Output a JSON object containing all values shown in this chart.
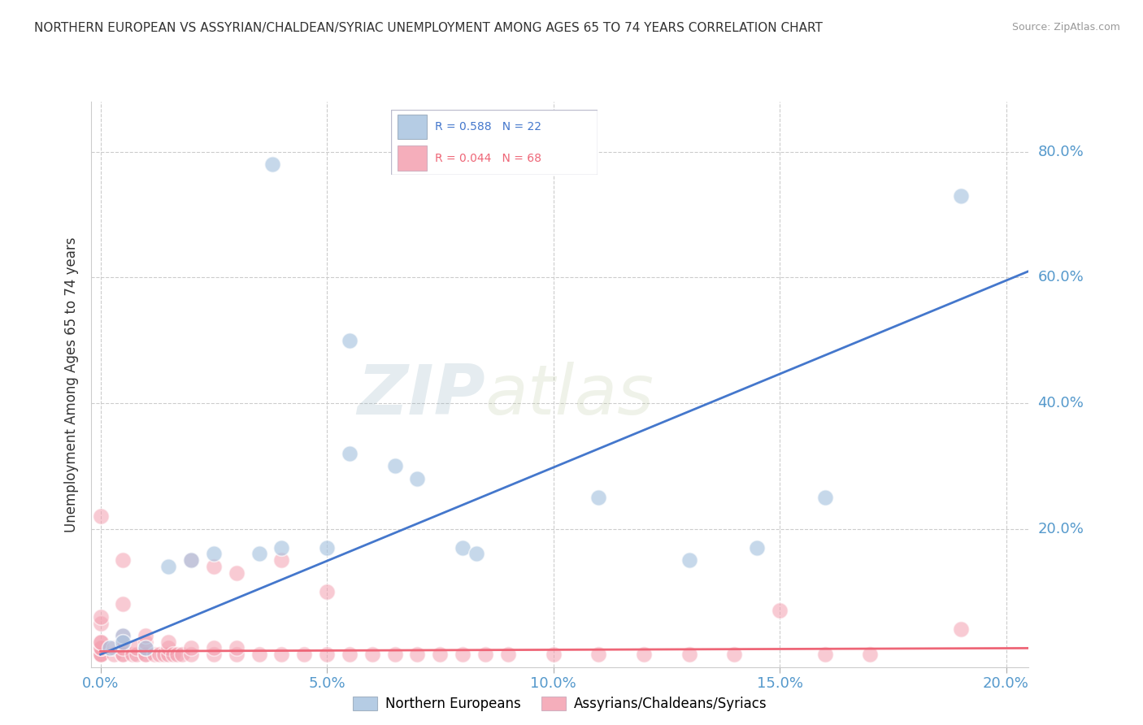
{
  "title": "NORTHERN EUROPEAN VS ASSYRIAN/CHALDEAN/SYRIAC UNEMPLOYMENT AMONG AGES 65 TO 74 YEARS CORRELATION CHART",
  "source_text": "Source: ZipAtlas.com",
  "xlabel_ticks": [
    "0.0%",
    "5.0%",
    "10.0%",
    "15.0%",
    "20.0%"
  ],
  "xlabel_tick_vals": [
    0.0,
    0.05,
    0.1,
    0.15,
    0.2
  ],
  "ylabel": "Unemployment Among Ages 65 to 74 years",
  "ylabel_ticks": [
    "80.0%",
    "60.0%",
    "40.0%",
    "20.0%"
  ],
  "ylabel_tick_vals": [
    0.8,
    0.6,
    0.4,
    0.2
  ],
  "xlim": [
    -0.002,
    0.205
  ],
  "ylim": [
    -0.02,
    0.88
  ],
  "watermark_zip": "ZIP",
  "watermark_atlas": "atlas",
  "blue_color": "#A8C4E0",
  "pink_color": "#F4A0B0",
  "line_blue": "#4477CC",
  "line_pink": "#EE6677",
  "legend_R_blue": "0.588",
  "legend_N_blue": "22",
  "legend_R_pink": "0.044",
  "legend_N_pink": "68",
  "blue_scatter_x": [
    0.038,
    0.055,
    0.055,
    0.065,
    0.07,
    0.08,
    0.083,
    0.005,
    0.015,
    0.02,
    0.025,
    0.035,
    0.04,
    0.05,
    0.11,
    0.13,
    0.145,
    0.16,
    0.19,
    0.002,
    0.005,
    0.01
  ],
  "blue_scatter_y": [
    0.78,
    0.5,
    0.32,
    0.3,
    0.28,
    0.17,
    0.16,
    0.03,
    0.14,
    0.15,
    0.16,
    0.16,
    0.17,
    0.17,
    0.25,
    0.15,
    0.17,
    0.25,
    0.73,
    0.01,
    0.02,
    0.01
  ],
  "pink_scatter_x": [
    0.0,
    0.0,
    0.0,
    0.0,
    0.0,
    0.0,
    0.0,
    0.0,
    0.003,
    0.003,
    0.005,
    0.005,
    0.005,
    0.005,
    0.005,
    0.007,
    0.008,
    0.008,
    0.01,
    0.01,
    0.01,
    0.01,
    0.01,
    0.012,
    0.013,
    0.014,
    0.015,
    0.015,
    0.015,
    0.016,
    0.017,
    0.018,
    0.02,
    0.02,
    0.02,
    0.025,
    0.025,
    0.025,
    0.03,
    0.03,
    0.03,
    0.035,
    0.04,
    0.04,
    0.045,
    0.05,
    0.05,
    0.055,
    0.06,
    0.065,
    0.07,
    0.075,
    0.08,
    0.085,
    0.09,
    0.1,
    0.11,
    0.12,
    0.13,
    0.14,
    0.15,
    0.16,
    0.17,
    0.19,
    0.005,
    0.005,
    0.0,
    0.0
  ],
  "pink_scatter_y": [
    0.0,
    0.0,
    0.0,
    0.01,
    0.01,
    0.02,
    0.02,
    0.22,
    0.0,
    0.01,
    0.0,
    0.0,
    0.01,
    0.02,
    0.03,
    0.0,
    0.0,
    0.01,
    0.0,
    0.0,
    0.01,
    0.02,
    0.03,
    0.0,
    0.0,
    0.0,
    0.0,
    0.01,
    0.02,
    0.0,
    0.0,
    0.0,
    0.0,
    0.01,
    0.15,
    0.0,
    0.01,
    0.14,
    0.0,
    0.01,
    0.13,
    0.0,
    0.0,
    0.15,
    0.0,
    0.0,
    0.1,
    0.0,
    0.0,
    0.0,
    0.0,
    0.0,
    0.0,
    0.0,
    0.0,
    0.0,
    0.0,
    0.0,
    0.0,
    0.0,
    0.07,
    0.0,
    0.0,
    0.04,
    0.08,
    0.15,
    0.05,
    0.06
  ],
  "blue_line_x": [
    0.0,
    0.205
  ],
  "blue_line_y": [
    0.0,
    0.61
  ],
  "pink_line_x": [
    0.0,
    0.205
  ],
  "pink_line_y": [
    0.005,
    0.01
  ],
  "grid_color": "#CCCCCC",
  "bg_color": "#FFFFFF",
  "marker_size": 200
}
